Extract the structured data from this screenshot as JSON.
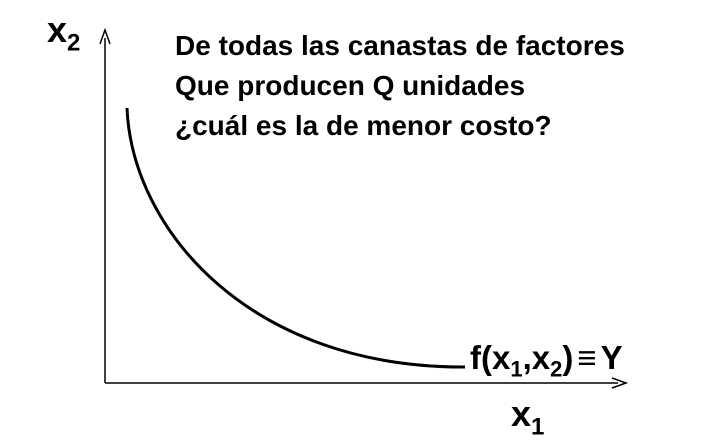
{
  "question": {
    "line1": "De todas las canastas de factores",
    "line2": "Que producen Q unidades",
    "line3": "¿cuál es la de menor costo?"
  },
  "axes": {
    "y": {
      "base": "x",
      "sub": "2"
    },
    "x": {
      "base": "x",
      "sub": "1"
    }
  },
  "curve_label": {
    "func": "f(x",
    "sub1": "1",
    "comma": ",x",
    "sub2": "2",
    "close": ")",
    "equiv": "≡",
    "rhs": "Y"
  }
}
